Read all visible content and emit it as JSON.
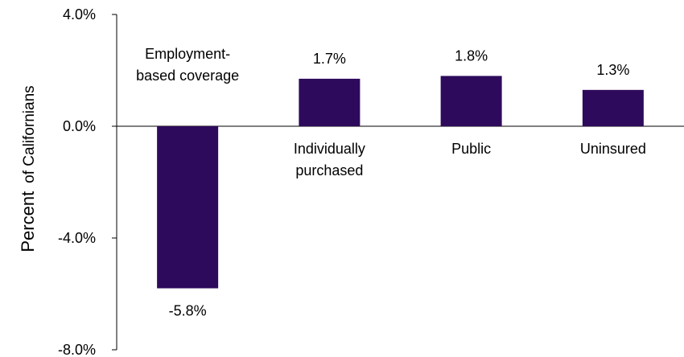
{
  "chart_data": {
    "type": "bar",
    "categories": [
      [
        "Employment-",
        "based coverage"
      ],
      [
        "Individually",
        "purchased"
      ],
      [
        "Public"
      ],
      [
        "Uninsured"
      ]
    ],
    "values": [
      -5.8,
      1.7,
      1.8,
      1.3
    ],
    "data_labels": [
      "-5.8%",
      "1.7%",
      "1.8%",
      "1.3%"
    ],
    "ylabel": {
      "main": "Percent",
      "rest": "of Californians"
    },
    "ylim": [
      -8.0,
      4.0
    ],
    "yticks": [
      4.0,
      0.0,
      -4.0,
      -8.0
    ],
    "ytick_labels": [
      "4.0%",
      "0.0%",
      "-4.0%",
      "-8.0%"
    ],
    "bar_color": "#2e0a5c",
    "grid": false,
    "legend": "none"
  }
}
